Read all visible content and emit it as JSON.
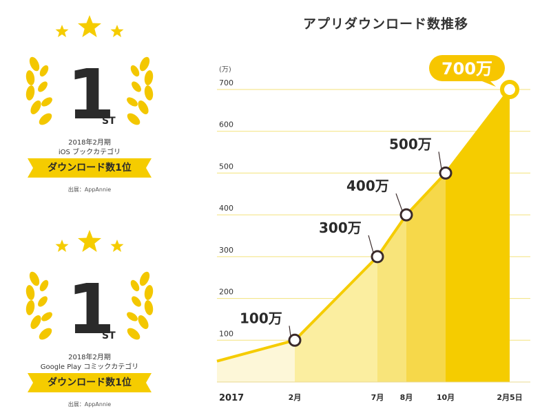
{
  "badges": [
    {
      "rank": "1",
      "suffix": "ST",
      "period": "2018年2月期",
      "category": "iOS ブックカテゴリ",
      "ribbon": "ダウンロード数1位",
      "source": "出展：AppAnnie"
    },
    {
      "rank": "1",
      "suffix": "ST",
      "period": "2018年2月期",
      "category": "Google Play コミックカテゴリ",
      "ribbon": "ダウンロード数1位",
      "source": "出展：AppAnnie"
    }
  ],
  "colors": {
    "gold": "#f5cc00",
    "wreath": "#f3c700",
    "line": "#f5cc00",
    "callout_bg": "#f7c600",
    "marker_stroke": "#3a2a2a",
    "grid": "#f3e27a"
  },
  "chart_data": {
    "type": "area",
    "title": "アプリダウンロード数推移",
    "y_unit_label": "(万)",
    "ylim": [
      0,
      700
    ],
    "yticks": [
      "0",
      "100",
      "200",
      "300",
      "400",
      "500",
      "600",
      "700"
    ],
    "year_label": "2017",
    "x_labels": [
      "2月",
      "7月",
      "8月",
      "10月",
      "2月5日"
    ],
    "series": [
      {
        "points": [
          {
            "x": "2017-01",
            "y": 50,
            "label": ""
          },
          {
            "x": "2月",
            "y": 100,
            "label": "100万"
          },
          {
            "x": "7月",
            "y": 300,
            "label": "300万"
          },
          {
            "x": "8月",
            "y": 400,
            "label": "400万"
          },
          {
            "x": "10月",
            "y": 500,
            "label": "500万"
          },
          {
            "x": "2月5日",
            "y": 700,
            "label": "700万"
          }
        ]
      }
    ],
    "grid": true
  }
}
